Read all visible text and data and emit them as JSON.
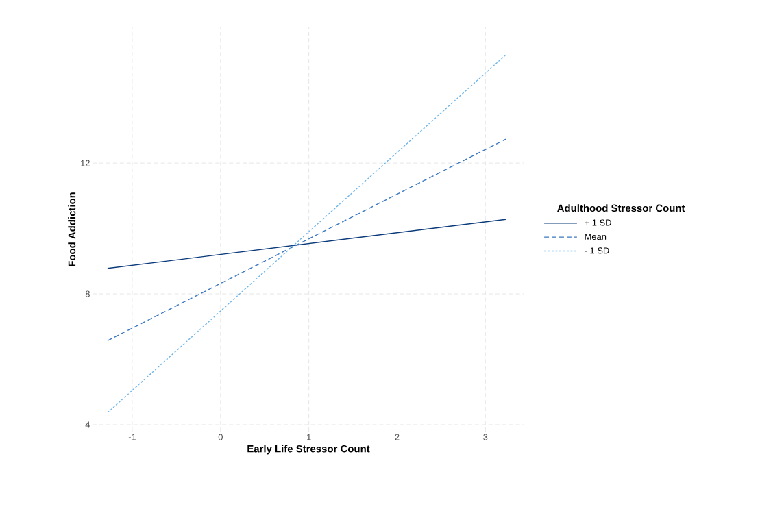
{
  "chart_data": {
    "type": "line",
    "xlabel": "Early Life Stressor Count",
    "ylabel": "Food Addiction",
    "legend_title": "Adulthood Stressor Count",
    "x": [
      -1.28,
      3.23
    ],
    "series": [
      {
        "name": "+ 1 SD",
        "color": "#0b3a7a",
        "line_style": "solid",
        "values": [
          8.78,
          10.28
        ]
      },
      {
        "name": "Mean",
        "color": "#3a78bf",
        "line_style": "dashed",
        "values": [
          6.57,
          12.73
        ]
      },
      {
        "name": "- 1 SD",
        "color": "#6fb6ea",
        "line_style": "dotted",
        "values": [
          4.37,
          15.31
        ]
      }
    ],
    "xlim": [
      -1.45,
      3.44
    ],
    "ylim": [
      3.79,
      16.15
    ],
    "xticks": [
      -1,
      0,
      1,
      2,
      3
    ],
    "yticks": [
      4,
      8,
      12
    ],
    "grid": true,
    "legend": "right"
  }
}
